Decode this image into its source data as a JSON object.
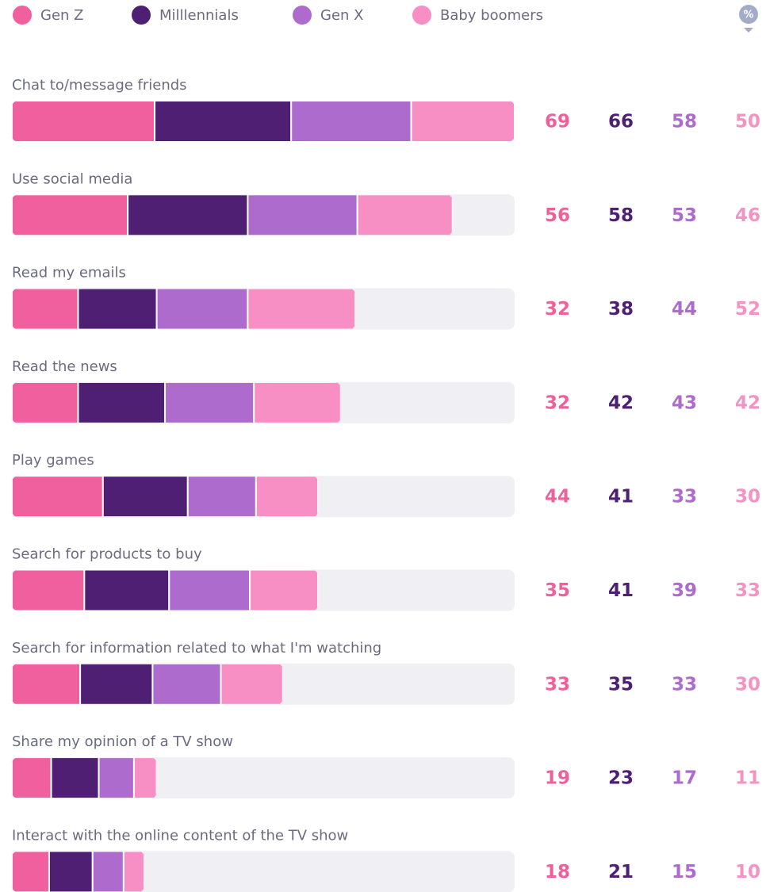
{
  "chart_data": {
    "type": "stacked-barh",
    "unit_badge": "%",
    "categories": [
      "Chat to/message friends",
      "Use social media",
      "Read my emails",
      "Read the news",
      "Play games",
      "Search for products to buy",
      "Search for information related to what I'm watching",
      "Share my opinion of a TV show",
      "Interact with the online content of the TV show"
    ],
    "series": [
      {
        "name": "Gen Z",
        "color": "#f0609e",
        "values": [
          69,
          56,
          32,
          32,
          44,
          35,
          33,
          19,
          18
        ]
      },
      {
        "name": "Milllennials",
        "color": "#4e1f72",
        "values": [
          66,
          58,
          38,
          42,
          41,
          41,
          35,
          23,
          21
        ]
      },
      {
        "name": "Gen X",
        "color": "#ae6bce",
        "values": [
          58,
          53,
          44,
          43,
          33,
          39,
          33,
          17,
          15
        ]
      },
      {
        "name": "Baby boomers",
        "color": "#f78fc4",
        "values": [
          50,
          46,
          52,
          42,
          30,
          33,
          30,
          11,
          10
        ]
      }
    ],
    "xlim": [
      0,
      243
    ],
    "track_color": "#efeff4"
  }
}
